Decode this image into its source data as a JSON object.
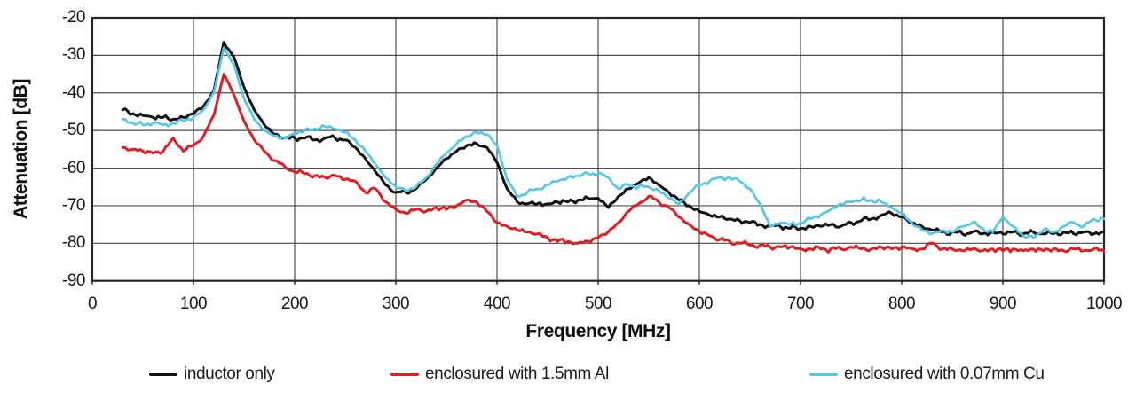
{
  "chart_data": {
    "type": "line",
    "title": "",
    "xlabel": "Frequency [MHz]",
    "ylabel": "Attenuation [dB]",
    "xlim": [
      0,
      1000
    ],
    "ylim": [
      -90,
      -20
    ],
    "x_ticks": [
      0,
      100,
      200,
      300,
      400,
      500,
      600,
      700,
      800,
      900,
      1000
    ],
    "y_ticks": [
      -20,
      -30,
      -40,
      -50,
      -60,
      -70,
      -80,
      -90
    ],
    "grid": true,
    "legend_position": "bottom",
    "x_start": 30,
    "x_step": 10,
    "noise_db": 0.85,
    "grid_color": "#4d4d4d",
    "border_color": "#262626",
    "series": [
      {
        "name": "inductor only",
        "color": "#111111",
        "width": 3,
        "values": [
          -44.5,
          -45.5,
          -46,
          -46.5,
          -46.5,
          -47,
          -46.5,
          -45.5,
          -43.5,
          -39.5,
          -26.5,
          -30.5,
          -38.5,
          -44.5,
          -48.5,
          -51,
          -52,
          -52,
          -52,
          -52.5,
          -52,
          -52,
          -52.5,
          -54.5,
          -57.5,
          -61,
          -64.5,
          -66.5,
          -66.5,
          -65.5,
          -63,
          -60,
          -57.5,
          -55.5,
          -54,
          -53.5,
          -54.5,
          -58.5,
          -65.5,
          -69,
          -69.5,
          -69.5,
          -69.5,
          -69,
          -69,
          -68.5,
          -68,
          -68,
          -70.5,
          -67.5,
          -65.5,
          -64,
          -62.5,
          -64.5,
          -66.5,
          -68.5,
          -70,
          -71.5,
          -72.5,
          -73,
          -73.5,
          -74,
          -74.5,
          -75,
          -75.5,
          -75.5,
          -76,
          -76,
          -75.5,
          -75.5,
          -75,
          -75.5,
          -74.5,
          -74,
          -73.5,
          -72.5,
          -72,
          -73,
          -74.5,
          -75.5,
          -76.5,
          -77,
          -77,
          -77.5,
          -77,
          -77.5,
          -77,
          -77.5,
          -77,
          -77.5,
          -77,
          -77.5,
          -77.5,
          -77,
          -77.5,
          -77,
          -77.5,
          -77
        ]
      },
      {
        "name": "enclosured with 1.5mm Al",
        "color": "#e01d20",
        "width": 3,
        "values": [
          -54.5,
          -55,
          -55.5,
          -56,
          -55.5,
          -52,
          -55.5,
          -54,
          -51.5,
          -46,
          -35,
          -40.5,
          -47.5,
          -52.5,
          -55.5,
          -58,
          -59.5,
          -61,
          -61.5,
          -62,
          -62.5,
          -62,
          -63,
          -63.5,
          -66.5,
          -65.5,
          -69,
          -71,
          -72,
          -71,
          -71.5,
          -70.5,
          -71,
          -70,
          -68.5,
          -69,
          -71.5,
          -74.5,
          -75.5,
          -76.5,
          -77,
          -77.5,
          -78.5,
          -79.5,
          -79.5,
          -80,
          -79.5,
          -78.5,
          -77,
          -74.5,
          -71.5,
          -69.5,
          -67.5,
          -69,
          -70.5,
          -73,
          -75,
          -77,
          -78,
          -79,
          -79.5,
          -80,
          -80.5,
          -80.5,
          -81,
          -81,
          -81,
          -81.5,
          -81.5,
          -81.5,
          -81.5,
          -81.5,
          -81,
          -81.5,
          -81.5,
          -81,
          -81.5,
          -81,
          -81.5,
          -81.5,
          -80,
          -81.5,
          -81.5,
          -82,
          -81.5,
          -82,
          -81.5,
          -82,
          -81.5,
          -82,
          -81.5,
          -82,
          -81.5,
          -82,
          -81.5,
          -82,
          -81.5,
          -82,
          -81.5
        ]
      },
      {
        "name": "enclosured with 0.07mm Cu",
        "color": "#54c8e8",
        "width": 2.7,
        "values": [
          -47,
          -48,
          -48.5,
          -48,
          -48.5,
          -48,
          -47.5,
          -46.5,
          -44.5,
          -40,
          -28,
          -32.5,
          -41.5,
          -47,
          -50,
          -51.5,
          -52,
          -51,
          -50,
          -49.5,
          -49,
          -49.5,
          -50.5,
          -52.5,
          -55.5,
          -59,
          -62.5,
          -65,
          -66,
          -65,
          -62.5,
          -59,
          -56,
          -53.5,
          -51.5,
          -50.5,
          -51,
          -54,
          -63,
          -67.5,
          -66.5,
          -65.5,
          -64.5,
          -63.5,
          -62.5,
          -62,
          -61.5,
          -61.5,
          -62.5,
          -65.5,
          -64.5,
          -65,
          -65,
          -66,
          -68,
          -69.5,
          -66.5,
          -64.5,
          -63.5,
          -62.5,
          -62.5,
          -63.5,
          -65.5,
          -69.5,
          -75.5,
          -74.5,
          -75,
          -74.5,
          -73.5,
          -72.5,
          -71,
          -69.5,
          -69,
          -68.5,
          -68.5,
          -69,
          -70.5,
          -72,
          -74.5,
          -76.5,
          -77.5,
          -76.5,
          -77,
          -75.5,
          -74.5,
          -76,
          -77,
          -73,
          -75.5,
          -78,
          -78.5,
          -76.5,
          -77,
          -75.5,
          -74.5,
          -75.5,
          -73.5,
          -73.5
        ]
      }
    ]
  },
  "layout_labels": {
    "x_axis_title": "Frequency [MHz]",
    "y_axis_title": "Attenuation [dB]"
  }
}
